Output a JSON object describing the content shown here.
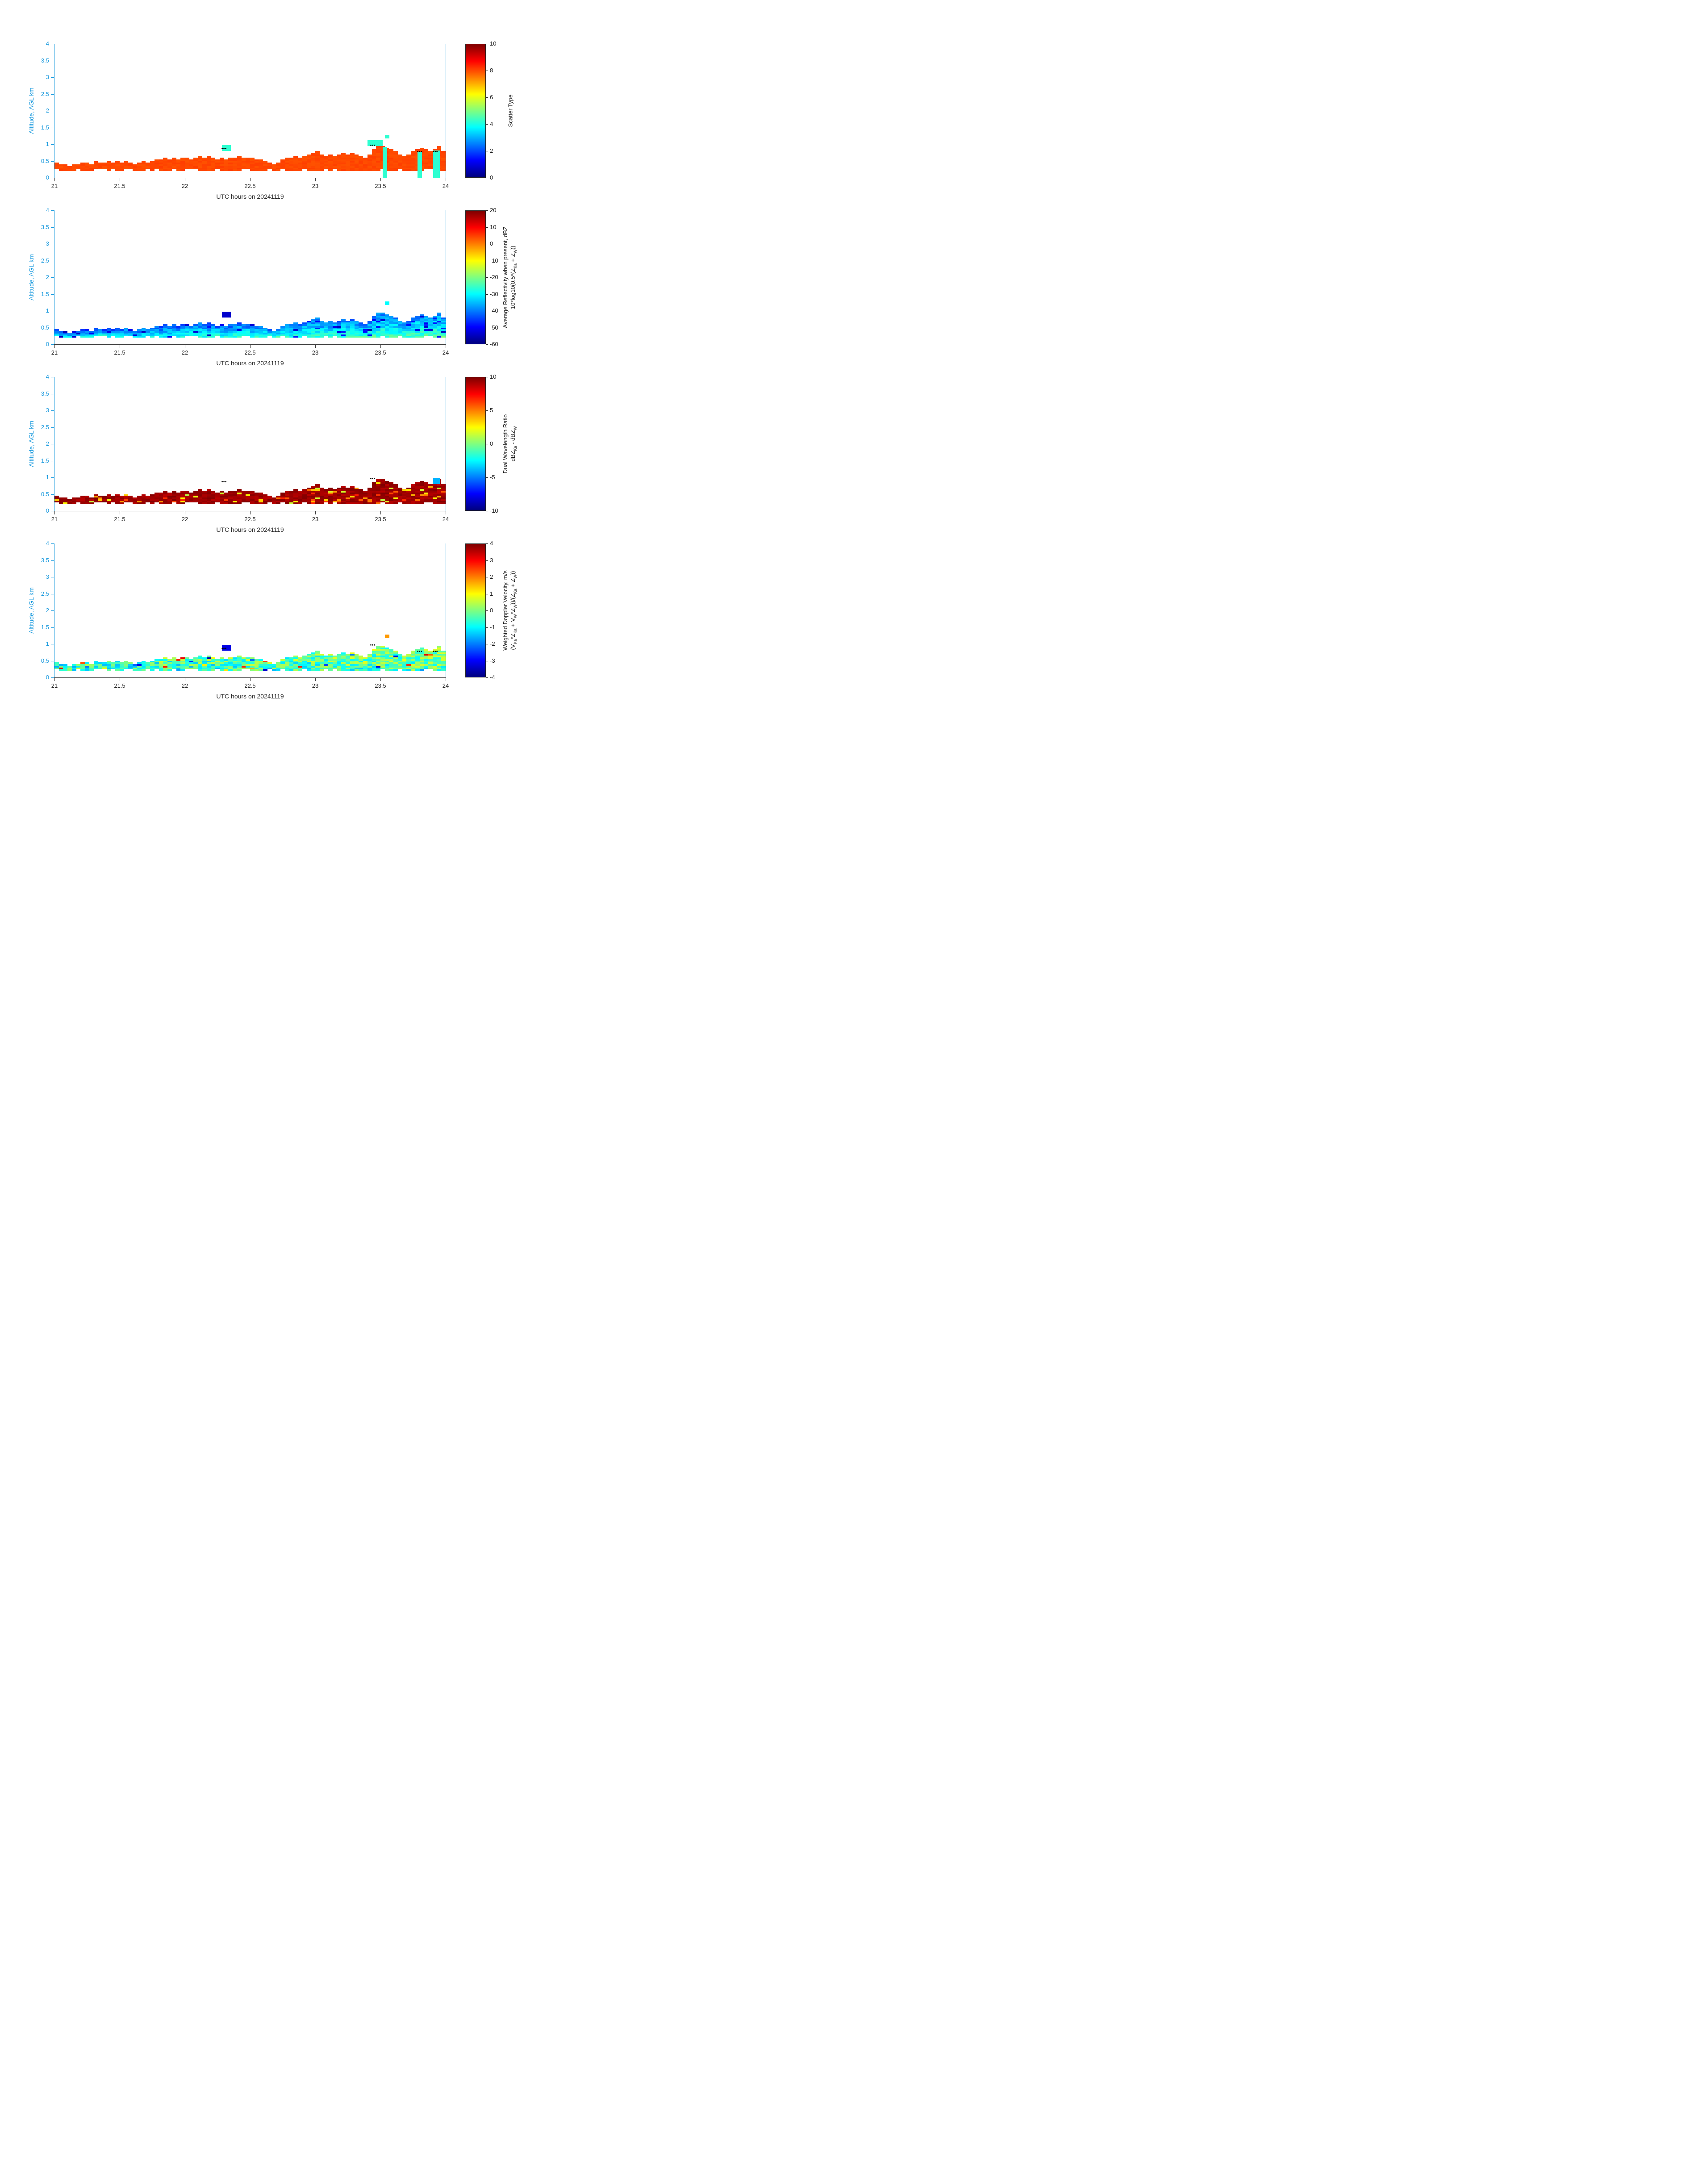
{
  "figure": {
    "xlabel": "UTC hours on 20241119",
    "ylabel": "Altitude, AGL km"
  },
  "colors": {
    "axis_blue": "#1899dd",
    "axis_dark": "#3c3c3c",
    "text_dark": "#262626",
    "background": "#ffffff"
  },
  "axes": {
    "x_range": [
      21,
      24
    ],
    "y_range": [
      0,
      4
    ],
    "x_ticks": [
      21,
      21.5,
      22,
      22.5,
      23,
      23.5,
      24
    ],
    "x_tick_labels": [
      "21",
      "21.5",
      "22",
      "22.5",
      "23",
      "23.5",
      "24"
    ],
    "y_ticks": [
      0,
      0.5,
      1,
      1.5,
      2,
      2.5,
      3,
      3.5,
      4
    ],
    "y_tick_labels": [
      "0",
      "0.5",
      "1",
      "1.5",
      "2",
      "2.5",
      "3",
      "3.5",
      "4"
    ]
  },
  "chart_data": {
    "type": "heatmap",
    "description": "Four time-height radar panels of a shallow boundary-layer cloud deck, jet colormap",
    "x_start": 21,
    "x_end": 24,
    "dx": 0.0333333,
    "nx": 90,
    "dy": 0.05,
    "cloud_base_km": 0.2,
    "cloud_top_km": [
      0.45,
      0.4,
      0.4,
      0.35,
      0.4,
      0.4,
      0.45,
      0.45,
      0.4,
      0.5,
      0.45,
      0.45,
      0.5,
      0.45,
      0.5,
      0.45,
      0.5,
      0.45,
      0.4,
      0.45,
      0.5,
      0.45,
      0.5,
      0.55,
      0.55,
      0.6,
      0.55,
      0.6,
      0.55,
      0.6,
      0.6,
      0.55,
      0.6,
      0.65,
      0.6,
      0.65,
      0.6,
      0.55,
      0.6,
      0.55,
      0.6,
      0.6,
      0.65,
      0.6,
      0.6,
      0.6,
      0.55,
      0.55,
      0.5,
      0.45,
      0.4,
      0.45,
      0.55,
      0.6,
      0.6,
      0.65,
      0.6,
      0.65,
      0.7,
      0.75,
      0.8,
      0.7,
      0.65,
      0.7,
      0.65,
      0.7,
      0.75,
      0.7,
      0.75,
      0.7,
      0.65,
      0.6,
      0.7,
      0.85,
      0.95,
      0.95,
      0.9,
      0.85,
      0.8,
      0.7,
      0.65,
      0.7,
      0.8,
      0.85,
      0.9,
      0.85,
      0.8,
      0.85,
      0.95,
      0.8
    ],
    "panels": [
      {
        "id": "scatter",
        "seed": 11,
        "colorbar": {
          "min": 0,
          "max": 10,
          "ticks": [
            0,
            2,
            4,
            6,
            8,
            10
          ],
          "tick_labels": [
            "0",
            "2",
            "4",
            "6",
            "8",
            "10"
          ],
          "label_lines": [
            "Scatter Type"
          ]
        },
        "model": {
          "base": 8.05,
          "h_grad": 0,
          "t_grad": 0,
          "noise": 0.1,
          "speckle_p": 0,
          "speckle_range": [
            0,
            0
          ]
        }
      },
      {
        "id": "refl",
        "seed": 22,
        "colorbar": {
          "min": -60,
          "max": 20,
          "ticks": [
            20,
            10,
            0,
            -10,
            -20,
            -30,
            -40,
            -50,
            -60
          ],
          "tick_labels": [
            "20",
            "10",
            "0",
            "-10",
            "-20",
            "-30",
            "-40",
            "-50",
            "-60"
          ],
          "label_lines": [
            "Average Reflectivity when present, dBZ",
            "10*log10(0.5*(Z_[Ka] + Z_[W]))"
          ]
        },
        "model": {
          "base": -31,
          "h_grad": -16,
          "t_grad": 7,
          "noise": 4.5,
          "speckle_p": 0.05,
          "speckle_range": [
            -56,
            -47
          ]
        }
      },
      {
        "id": "dwr",
        "seed": 33,
        "colorbar": {
          "min": -10,
          "max": 10,
          "ticks": [
            10,
            5,
            0,
            -5,
            -10
          ],
          "tick_labels": [
            "10",
            "5",
            "0",
            "-5",
            "-10"
          ],
          "label_lines": [
            "Dual Wavelength Ratio",
            "dBZ_[Ka] - dBZ_[W]"
          ]
        },
        "model": {
          "base": 9.4,
          "h_grad": 0,
          "t_grad": 0,
          "noise": 0.6,
          "speckle_p": 0.09,
          "speckle_range": [
            1,
            7
          ]
        }
      },
      {
        "id": "vel",
        "seed": 44,
        "colorbar": {
          "min": -4,
          "max": 4,
          "ticks": [
            4,
            3,
            2,
            1,
            0,
            -1,
            -2,
            -3,
            -4
          ],
          "tick_labels": [
            "4",
            "3",
            "2",
            "1",
            "0",
            "-1",
            "-2",
            "-3",
            "-4"
          ],
          "label_lines": [
            "Weighted Doppler Velocity, m/s",
            "(V_[Ka]*Z_[Ka] + V_[W]*Z_[W]))/(Z_[Ka] + Z_[W]))"
          ]
        },
        "model": {
          "base": -0.9,
          "h_grad": 0.4,
          "t_grad": 0.6,
          "noise": 1.0,
          "speckle_p": 0.06,
          "speckle_range": [
            -3.8,
            3.4
          ]
        }
      }
    ],
    "features": [
      {
        "x0": 22.283,
        "x1": 22.35,
        "y0": 0.8,
        "y1": 0.97,
        "values": {
          "scatter": 4.2,
          "refl": -54,
          "vel": -3.2
        }
      },
      {
        "x0": 23.4,
        "x1": 23.517,
        "y0": 0.95,
        "y1": 1.12,
        "values": {
          "scatter": 4.2
        }
      },
      {
        "x0": 23.533,
        "x1": 23.567,
        "y0": 1.18,
        "y1": 1.28,
        "values": {
          "scatter": 4.2,
          "refl": -30,
          "vel": 1.8
        }
      },
      {
        "x0": 23.517,
        "x1": 23.55,
        "y0": 0.0,
        "y1": 0.92,
        "values": {
          "scatter": 4.2
        }
      },
      {
        "x0": 23.783,
        "x1": 23.817,
        "y0": 0.0,
        "y1": 0.78,
        "values": {
          "scatter": 4.2
        }
      },
      {
        "x0": 23.905,
        "x1": 23.955,
        "y0": 0.0,
        "y1": 0.82,
        "values": {
          "scatter": 4.2
        }
      },
      {
        "x0": 23.905,
        "x1": 23.955,
        "y0": 0.8,
        "y1": 0.98,
        "values": {
          "dwr": -4
        }
      }
    ],
    "dot_markers": [
      {
        "x": 22.3,
        "y": 0.87,
        "panels": [
          "scatter",
          "dwr",
          "vel"
        ]
      },
      {
        "x": 23.44,
        "y": 0.97,
        "panels": [
          "scatter",
          "dwr",
          "vel"
        ]
      },
      {
        "x": 23.8,
        "y": 0.78,
        "panels": [
          "scatter",
          "vel"
        ]
      },
      {
        "x": 23.92,
        "y": 0.78,
        "panels": [
          "scatter",
          "vel"
        ]
      }
    ]
  }
}
